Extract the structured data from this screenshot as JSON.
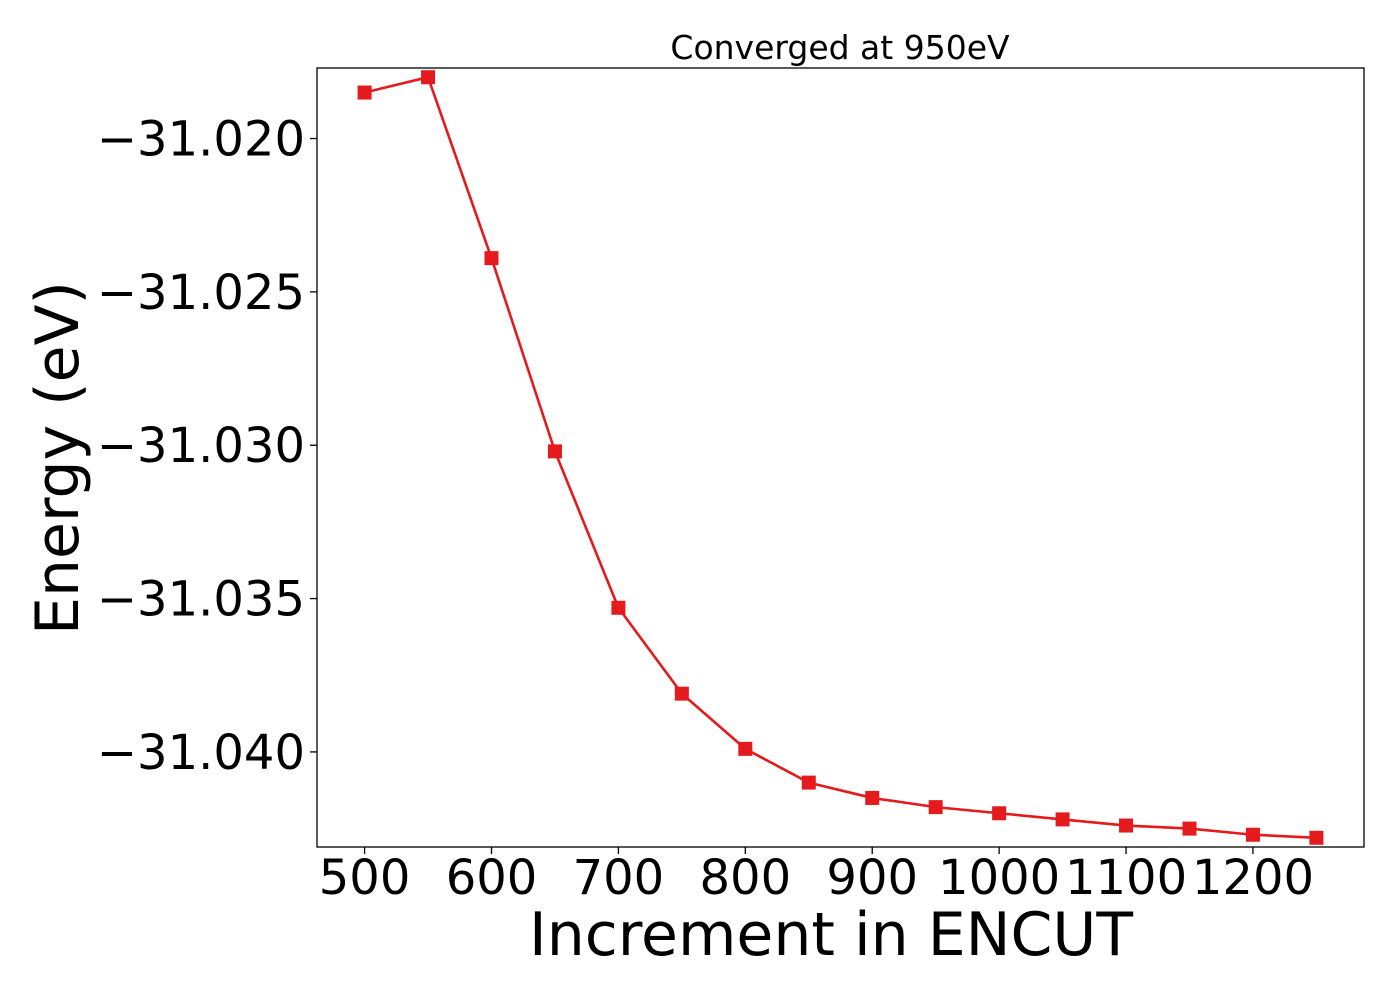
{
  "chart_data": {
    "type": "line",
    "title": "Converged at 950eV",
    "xlabel": "Increment in ENCUT",
    "ylabel": "Energy (eV)",
    "x": [
      500,
      550,
      600,
      650,
      700,
      750,
      800,
      850,
      900,
      950,
      1000,
      1050,
      1100,
      1150,
      1200,
      1250
    ],
    "series": [
      {
        "values": [
          -31.0185,
          -31.018,
          -31.0239,
          -31.0302,
          -31.0353,
          -31.0381,
          -31.0399,
          -31.041,
          -31.0415,
          -31.0418,
          -31.042,
          -31.0422,
          -31.0424,
          -31.0425,
          -31.0427,
          -31.0428
        ],
        "color": "#e41a1c",
        "marker": "square"
      }
    ],
    "xticks": [
      500,
      600,
      700,
      800,
      900,
      1000,
      1100,
      1200
    ],
    "xtick_labels": [
      "500",
      "600",
      "700",
      "800",
      "900",
      "1000",
      "1100",
      "1200"
    ],
    "yticks": [
      -31.02,
      -31.025,
      -31.03,
      -31.035,
      -31.04
    ],
    "ytick_labels": [
      "−31.020",
      "−31.025",
      "−31.030",
      "−31.035",
      "−31.040"
    ],
    "xlim": [
      462.5,
      1287.5
    ],
    "ylim": [
      -31.0431,
      -31.0177
    ],
    "grid": false,
    "legend": "none"
  }
}
